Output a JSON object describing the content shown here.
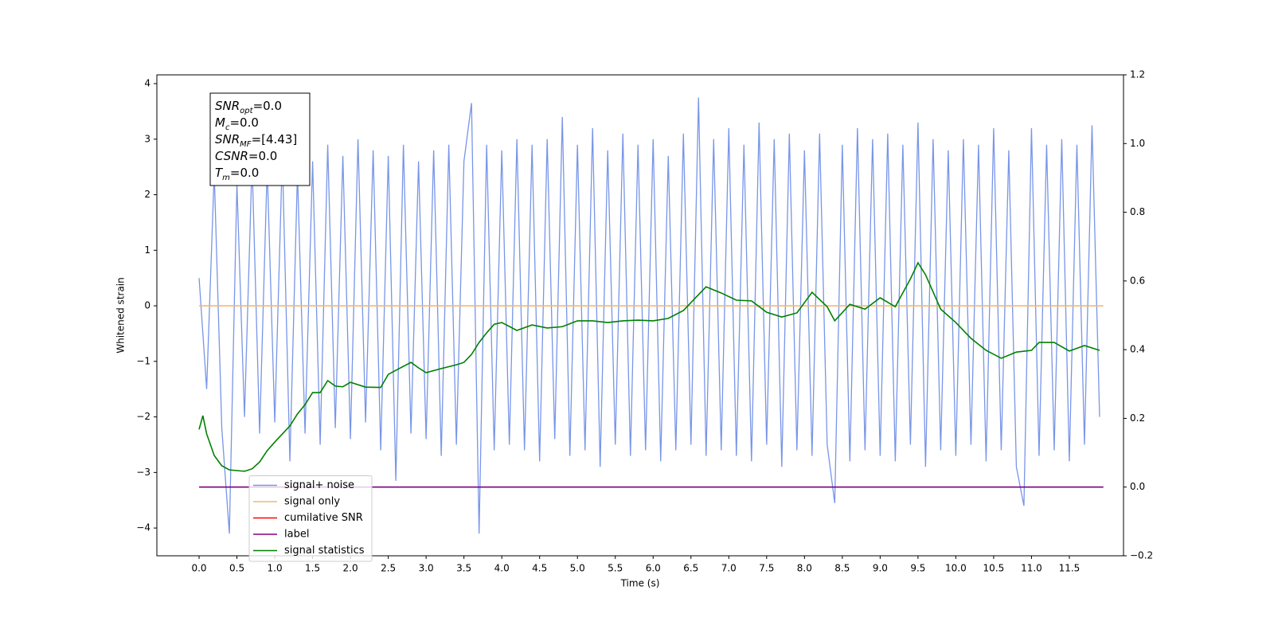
{
  "chart_data": {
    "type": "line",
    "xlabel": "Time (s)",
    "ylabel": "Whitened strain",
    "xlim": [
      -0.558,
      12.216
    ],
    "ylim": [
      -4.5,
      4.158
    ],
    "y2lim": [
      -0.2,
      1.2
    ],
    "xticks": [
      {
        "value": 0,
        "label": "0.0"
      },
      {
        "value": 0.5,
        "label": "0.5"
      },
      {
        "value": 1,
        "label": "1.0"
      },
      {
        "value": 1.5,
        "label": "1.5"
      },
      {
        "value": 2,
        "label": "2.0"
      },
      {
        "value": 2.5,
        "label": "2.5"
      },
      {
        "value": 3,
        "label": "3.0"
      },
      {
        "value": 3.5,
        "label": "3.5"
      },
      {
        "value": 4,
        "label": "4.0"
      },
      {
        "value": 4.5,
        "label": "4.5"
      },
      {
        "value": 5,
        "label": "5.0"
      },
      {
        "value": 5.5,
        "label": "5.5"
      },
      {
        "value": 6,
        "label": "6.0"
      },
      {
        "value": 6.5,
        "label": "6.5"
      },
      {
        "value": 7,
        "label": "7.0"
      },
      {
        "value": 7.5,
        "label": "7.5"
      },
      {
        "value": 8,
        "label": "8.0"
      },
      {
        "value": 8.5,
        "label": "8.5"
      },
      {
        "value": 9,
        "label": "9.0"
      },
      {
        "value": 9.5,
        "label": "9.5"
      },
      {
        "value": 10,
        "label": "10.0"
      },
      {
        "value": 10.5,
        "label": "10.5"
      },
      {
        "value": 11,
        "label": "11.0"
      },
      {
        "value": 11.5,
        "label": "11.5"
      }
    ],
    "yticks": [
      {
        "value": -4,
        "label": "−4"
      },
      {
        "value": -3,
        "label": "−3"
      },
      {
        "value": -2,
        "label": "−2"
      },
      {
        "value": -1,
        "label": "−1"
      },
      0,
      1,
      2,
      3,
      4
    ],
    "y2ticks": [
      {
        "value": -0.2,
        "label": "−0.2"
      },
      {
        "value": 0,
        "label": "0.0"
      },
      {
        "value": 0.2,
        "label": "0.2"
      },
      {
        "value": 0.4,
        "label": "0.4"
      },
      {
        "value": 0.6,
        "label": "0.6"
      },
      {
        "value": 0.8,
        "label": "0.8"
      },
      {
        "value": 1,
        "label": "1.0"
      },
      {
        "value": 1.2,
        "label": "1.2"
      }
    ],
    "legend": "lower left",
    "annotations": [
      {
        "text": "SNR",
        "sub": "opt",
        "value": "=0.0"
      },
      {
        "text": "M",
        "sub": "c",
        "value": "=0.0"
      },
      {
        "text": "SNR",
        "sub": "MF",
        "value": "=[4.43]"
      },
      {
        "text": "CSNR",
        "value": "=0.0"
      },
      {
        "text": "T",
        "sub": "m",
        "value": "=0.0"
      }
    ],
    "series": [
      {
        "name": "signal+ noise",
        "color": "#7895e8",
        "x": [
          0,
          0.1,
          0.2,
          0.3,
          0.4,
          0.5,
          0.6,
          0.7,
          0.8,
          0.9,
          1,
          1.1,
          1.2,
          1.3,
          1.4,
          1.5,
          1.6,
          1.7,
          1.8,
          1.9,
          2,
          2.1,
          2.2,
          2.3,
          2.4,
          2.5,
          2.6,
          2.7,
          2.8,
          2.9,
          3,
          3.1,
          3.2,
          3.3,
          3.4,
          3.5,
          3.6,
          3.7,
          3.8,
          3.9,
          4,
          4.1,
          4.2,
          4.3,
          4.4,
          4.5,
          4.6,
          4.7,
          4.8,
          4.9,
          5,
          5.1,
          5.2,
          5.3,
          5.4,
          5.5,
          5.6,
          5.7,
          5.8,
          5.9,
          6,
          6.1,
          6.2,
          6.3,
          6.4,
          6.5,
          6.6,
          6.7,
          6.8,
          6.9,
          7,
          7.1,
          7.2,
          7.3,
          7.4,
          7.5,
          7.6,
          7.7,
          7.8,
          7.9,
          8,
          8.1,
          8.2,
          8.3,
          8.4,
          8.5,
          8.6,
          8.7,
          8.8,
          8.9,
          9,
          9.1,
          9.2,
          9.3,
          9.4,
          9.5,
          9.6,
          9.7,
          9.8,
          9.9,
          10,
          10.1,
          10.2,
          10.3,
          10.4,
          10.5,
          10.6,
          10.7,
          10.8,
          10.9,
          11,
          11.1,
          11.2,
          11.3,
          11.4,
          11.5,
          11.6,
          11.7,
          11.8,
          11.9
        ],
        "values": [
          0.5,
          -1.5,
          2.4,
          -2.2,
          -4.1,
          2.2,
          -2.0,
          2.6,
          -2.3,
          2.5,
          -2.1,
          2.7,
          -2.8,
          2.4,
          -2.3,
          2.6,
          -2.5,
          2.9,
          -2.2,
          2.7,
          -2.4,
          3.0,
          -2.1,
          2.8,
          -2.6,
          2.7,
          -3.15,
          2.9,
          -2.3,
          2.6,
          -2.4,
          2.8,
          -2.7,
          2.9,
          -2.5,
          2.6,
          3.65,
          -4.1,
          2.9,
          -2.6,
          2.8,
          -2.5,
          3.0,
          -2.6,
          2.9,
          -2.8,
          3.0,
          -2.4,
          3.4,
          -2.7,
          2.9,
          -2.6,
          3.2,
          -2.9,
          2.8,
          -2.5,
          3.1,
          -2.7,
          2.9,
          -2.6,
          3.0,
          -2.8,
          2.7,
          -2.6,
          3.1,
          -2.5,
          3.75,
          -2.7,
          3.0,
          -2.6,
          3.2,
          -2.7,
          2.9,
          -2.8,
          3.3,
          -2.5,
          3.0,
          -2.9,
          3.1,
          -2.6,
          2.8,
          -2.7,
          3.1,
          -2.5,
          -3.55,
          2.9,
          -2.8,
          3.2,
          -2.6,
          3.0,
          -2.7,
          3.1,
          -2.8,
          2.9,
          -2.5,
          3.3,
          -2.9,
          3.0,
          -2.6,
          2.8,
          -2.7,
          3.0,
          -2.5,
          2.9,
          -2.8,
          3.2,
          -2.6,
          2.8,
          -2.9,
          -3.6,
          3.2,
          -2.7,
          2.9,
          -2.6,
          3.0,
          -2.8,
          2.9,
          -2.5,
          3.25,
          -2.0
        ]
      },
      {
        "name": "signal only",
        "color": "#f5b870",
        "x": [
          0,
          11.95
        ],
        "values": [
          0,
          0
        ]
      },
      {
        "name": "cumilative SNR",
        "color": "#ff0000",
        "x": [],
        "values": []
      },
      {
        "name": "label",
        "color": "#800080",
        "axis": "y2",
        "x": [
          0,
          11.95
        ],
        "values": [
          0,
          0
        ]
      },
      {
        "name": "signal statistics",
        "color": "#008000",
        "axis": "y2",
        "x": [
          0,
          0.05,
          0.1,
          0.2,
          0.3,
          0.4,
          0.5,
          0.6,
          0.7,
          0.8,
          0.9,
          1,
          1.2,
          1.3,
          1.4,
          1.5,
          1.6,
          1.7,
          1.8,
          1.9,
          2,
          2.2,
          2.4,
          2.5,
          2.6,
          2.8,
          2.9,
          3,
          3.2,
          3.4,
          3.5,
          3.6,
          3.7,
          3.8,
          3.9,
          4,
          4.2,
          4.4,
          4.6,
          4.8,
          5,
          5.2,
          5.4,
          5.6,
          5.8,
          6,
          6.2,
          6.4,
          6.6,
          6.7,
          6.9,
          7.1,
          7.3,
          7.5,
          7.7,
          7.9,
          8.1,
          8.3,
          8.4,
          8.6,
          8.8,
          9,
          9.2,
          9.4,
          9.5,
          9.6,
          9.8,
          10,
          10.2,
          10.4,
          10.6,
          10.8,
          11,
          11.1,
          11.3,
          11.5,
          11.7,
          11.9
        ],
        "values": [
          0.168,
          0.208,
          0.155,
          0.092,
          0.062,
          0.05,
          0.048,
          0.046,
          0.053,
          0.073,
          0.106,
          0.131,
          0.178,
          0.213,
          0.24,
          0.275,
          0.275,
          0.31,
          0.294,
          0.292,
          0.305,
          0.291,
          0.29,
          0.328,
          0.34,
          0.363,
          0.347,
          0.333,
          0.345,
          0.356,
          0.363,
          0.386,
          0.421,
          0.449,
          0.474,
          0.479,
          0.456,
          0.472,
          0.463,
          0.467,
          0.484,
          0.484,
          0.479,
          0.484,
          0.486,
          0.484,
          0.491,
          0.514,
          0.56,
          0.583,
          0.565,
          0.544,
          0.542,
          0.509,
          0.495,
          0.507,
          0.567,
          0.525,
          0.484,
          0.532,
          0.518,
          0.551,
          0.525,
          0.606,
          0.653,
          0.618,
          0.518,
          0.479,
          0.433,
          0.398,
          0.375,
          0.393,
          0.398,
          0.421,
          0.421,
          0.396,
          0.412,
          0.398
        ]
      }
    ]
  }
}
